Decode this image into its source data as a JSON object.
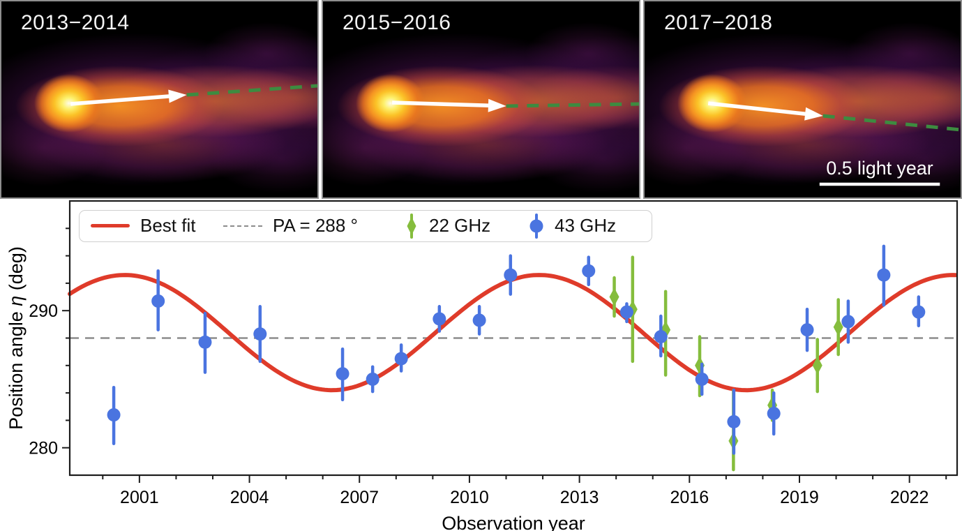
{
  "panels": [
    {
      "label": "2013−2014"
    },
    {
      "label": "2015−2016"
    },
    {
      "label": "2017−2018",
      "scale_bar": "0.5 light year"
    }
  ],
  "colors": {
    "best_fit": "#df3b2a",
    "ghz22": "#85bd3d",
    "ghz43": "#4a74e0",
    "reference": "#8c8c8c",
    "frame": "#1c1c1c",
    "jet_track": "#3d8b40",
    "arrow": "#ffffff"
  },
  "chart_data": {
    "type": "scatter",
    "xlabel": "Observation year",
    "ylabel": "Position angle η (deg)",
    "xlim": [
      1999.1,
      2023.3
    ],
    "ylim": [
      278,
      298
    ],
    "x_major_ticks": [
      2001,
      2004,
      2007,
      2010,
      2013,
      2016,
      2019,
      2022
    ],
    "x_minor_step": 1,
    "y_major_ticks": [
      280,
      290
    ],
    "y_minor_step": 2,
    "grid": false,
    "legend_position": "upper left",
    "reference_line": {
      "label": "PA = 288 °",
      "value": 288
    },
    "best_fit": {
      "label": "Best fit",
      "mean_deg": 288.4,
      "amplitude_deg": 4.2,
      "period_yr": 11.3,
      "peak_year": 2011.9
    },
    "series": [
      {
        "name": "22 GHz",
        "marker": "diamond",
        "points": [
          [
            2013.95,
            291.0,
            289.6,
            292.4
          ],
          [
            2014.45,
            290.1,
            286.3,
            293.9
          ],
          [
            2015.35,
            288.6,
            285.3,
            291.4
          ],
          [
            2016.28,
            286.0,
            283.8,
            288.1
          ],
          [
            2017.2,
            280.5,
            278.4,
            284.2
          ],
          [
            2018.26,
            283.1,
            282.0,
            284.2
          ],
          [
            2019.49,
            286.0,
            284.1,
            287.9
          ],
          [
            2020.06,
            288.8,
            286.8,
            290.8
          ]
        ]
      },
      {
        "name": "43 GHz",
        "marker": "circle",
        "points": [
          [
            2000.3,
            282.4,
            280.3,
            284.4
          ],
          [
            2001.51,
            290.7,
            288.6,
            292.9
          ],
          [
            2002.79,
            287.7,
            285.5,
            289.8
          ],
          [
            2004.29,
            288.3,
            286.3,
            290.3
          ],
          [
            2006.54,
            285.4,
            283.5,
            287.2
          ],
          [
            2007.36,
            285.0,
            284.1,
            285.9
          ],
          [
            2008.14,
            286.5,
            285.6,
            287.5
          ],
          [
            2009.18,
            289.4,
            288.5,
            290.3
          ],
          [
            2010.27,
            289.3,
            288.3,
            290.3
          ],
          [
            2011.12,
            292.6,
            291.2,
            294.0
          ],
          [
            2013.25,
            292.9,
            291.9,
            293.9
          ],
          [
            2014.29,
            289.9,
            289.2,
            290.5
          ],
          [
            2015.22,
            288.1,
            286.7,
            289.6
          ],
          [
            2016.34,
            285.0,
            283.9,
            286.1
          ],
          [
            2017.21,
            281.9,
            279.6,
            284.2
          ],
          [
            2018.3,
            282.5,
            281.0,
            284.0
          ],
          [
            2019.21,
            288.6,
            287.1,
            290.1
          ],
          [
            2020.33,
            289.2,
            287.7,
            290.7
          ],
          [
            2021.3,
            292.6,
            290.4,
            294.7
          ],
          [
            2022.25,
            289.9,
            288.9,
            291.0
          ]
        ]
      }
    ]
  }
}
